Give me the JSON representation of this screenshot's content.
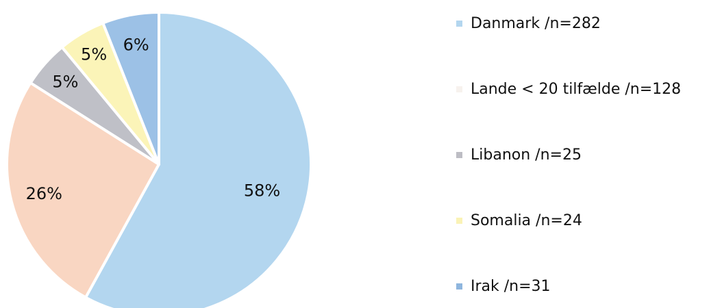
{
  "chart_data": {
    "type": "pie",
    "slices": [
      {
        "label": "Danmark /n=282",
        "value": 58,
        "display": "58%",
        "color": "#b3d6ef"
      },
      {
        "label": "Lande < 20 tilfælde /n=128",
        "value": 26,
        "display": "26%",
        "color": "#f9d6c2"
      },
      {
        "label": "Libanon /n=25",
        "value": 5,
        "display": "5%",
        "color": "#bfc0c7"
      },
      {
        "label": "Somalia /n=24",
        "value": 5,
        "display": "5%",
        "color": "#fbf4b8"
      },
      {
        "label": "Irak /n=31",
        "value": 6,
        "display": "6%",
        "color": "#9cc1e6"
      }
    ],
    "legend": {
      "placement": "right",
      "entries": [
        {
          "label": "Danmark /n=282",
          "color": "#b3d6ef"
        },
        {
          "label": "Lande < 20 tilfælde /n=128",
          "color": "#f7f2ee"
        },
        {
          "label": "Libanon /n=25",
          "color": "#bdbdc4"
        },
        {
          "label": "Somalia /n=24",
          "color": "#faf3b6"
        },
        {
          "label": "Irak /n=31",
          "color": "#8fb6de"
        }
      ]
    }
  }
}
